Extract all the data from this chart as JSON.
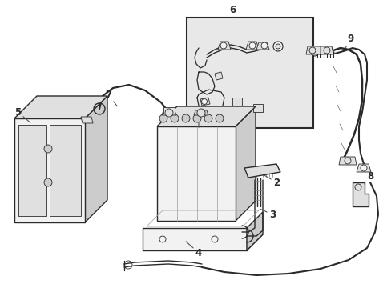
{
  "bg": "#ffffff",
  "lc": "#2a2a2a",
  "fc_light": "#f2f2f2",
  "fc_mid": "#e0e0e0",
  "fc_dark": "#cccccc",
  "inset_bg": "#e8e8e8",
  "lw": 1.0,
  "tlw": 0.6,
  "figsize": [
    4.89,
    3.6
  ],
  "dpi": 100,
  "xlim": [
    0,
    489
  ],
  "ylim": [
    0,
    360
  ]
}
